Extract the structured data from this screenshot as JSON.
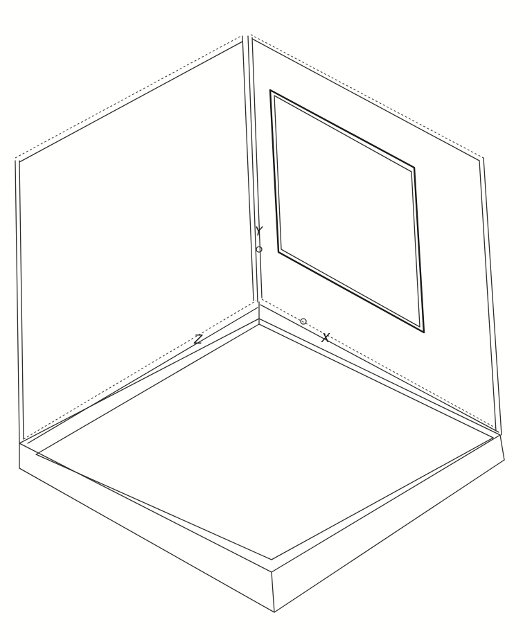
{
  "diagram": {
    "kind": "isometric room corner with floor slab, two walls and a window",
    "axes": {
      "x": "X",
      "y": "Y",
      "z": "Z"
    },
    "colors": {
      "line": "#2b2b2b",
      "background": "#fffffd"
    }
  }
}
